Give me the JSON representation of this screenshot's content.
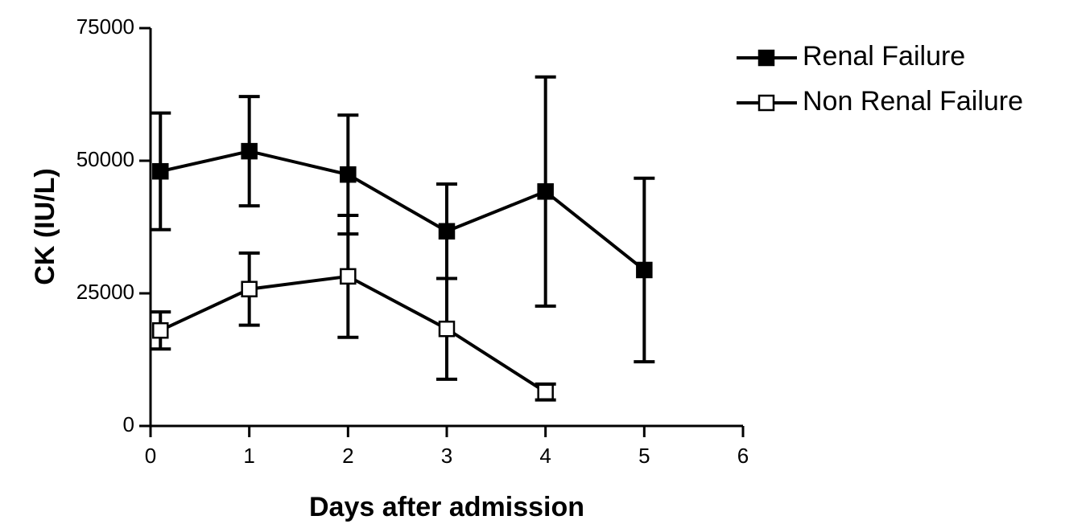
{
  "chart_data": {
    "type": "line",
    "x_label": "Days after admission",
    "y_label": "CK (IU/L)",
    "x": [
      0.1,
      1,
      2,
      3,
      4,
      5
    ],
    "series": [
      {
        "name": "Renal Failure",
        "color": "#000000",
        "marker_fill": "#000000",
        "values": [
          48000,
          51800,
          47400,
          36700,
          44200,
          29400
        ],
        "errors": [
          11000,
          10300,
          11200,
          8900,
          21600,
          17300
        ]
      },
      {
        "name": "Non Renal Failure",
        "color": "#000000",
        "marker_fill": "#ffffff",
        "values": [
          18000,
          25800,
          28200,
          18300,
          6400,
          null
        ],
        "errors": [
          3500,
          6800,
          11500,
          9500,
          1500,
          null
        ]
      }
    ],
    "xlim": [
      0,
      6
    ],
    "xticks": [
      0,
      1,
      2,
      3,
      4,
      5,
      6
    ],
    "ylim": [
      0,
      75000
    ],
    "yticks": [
      0,
      25000,
      50000,
      75000
    ],
    "grid": false,
    "legend": "top-right"
  }
}
